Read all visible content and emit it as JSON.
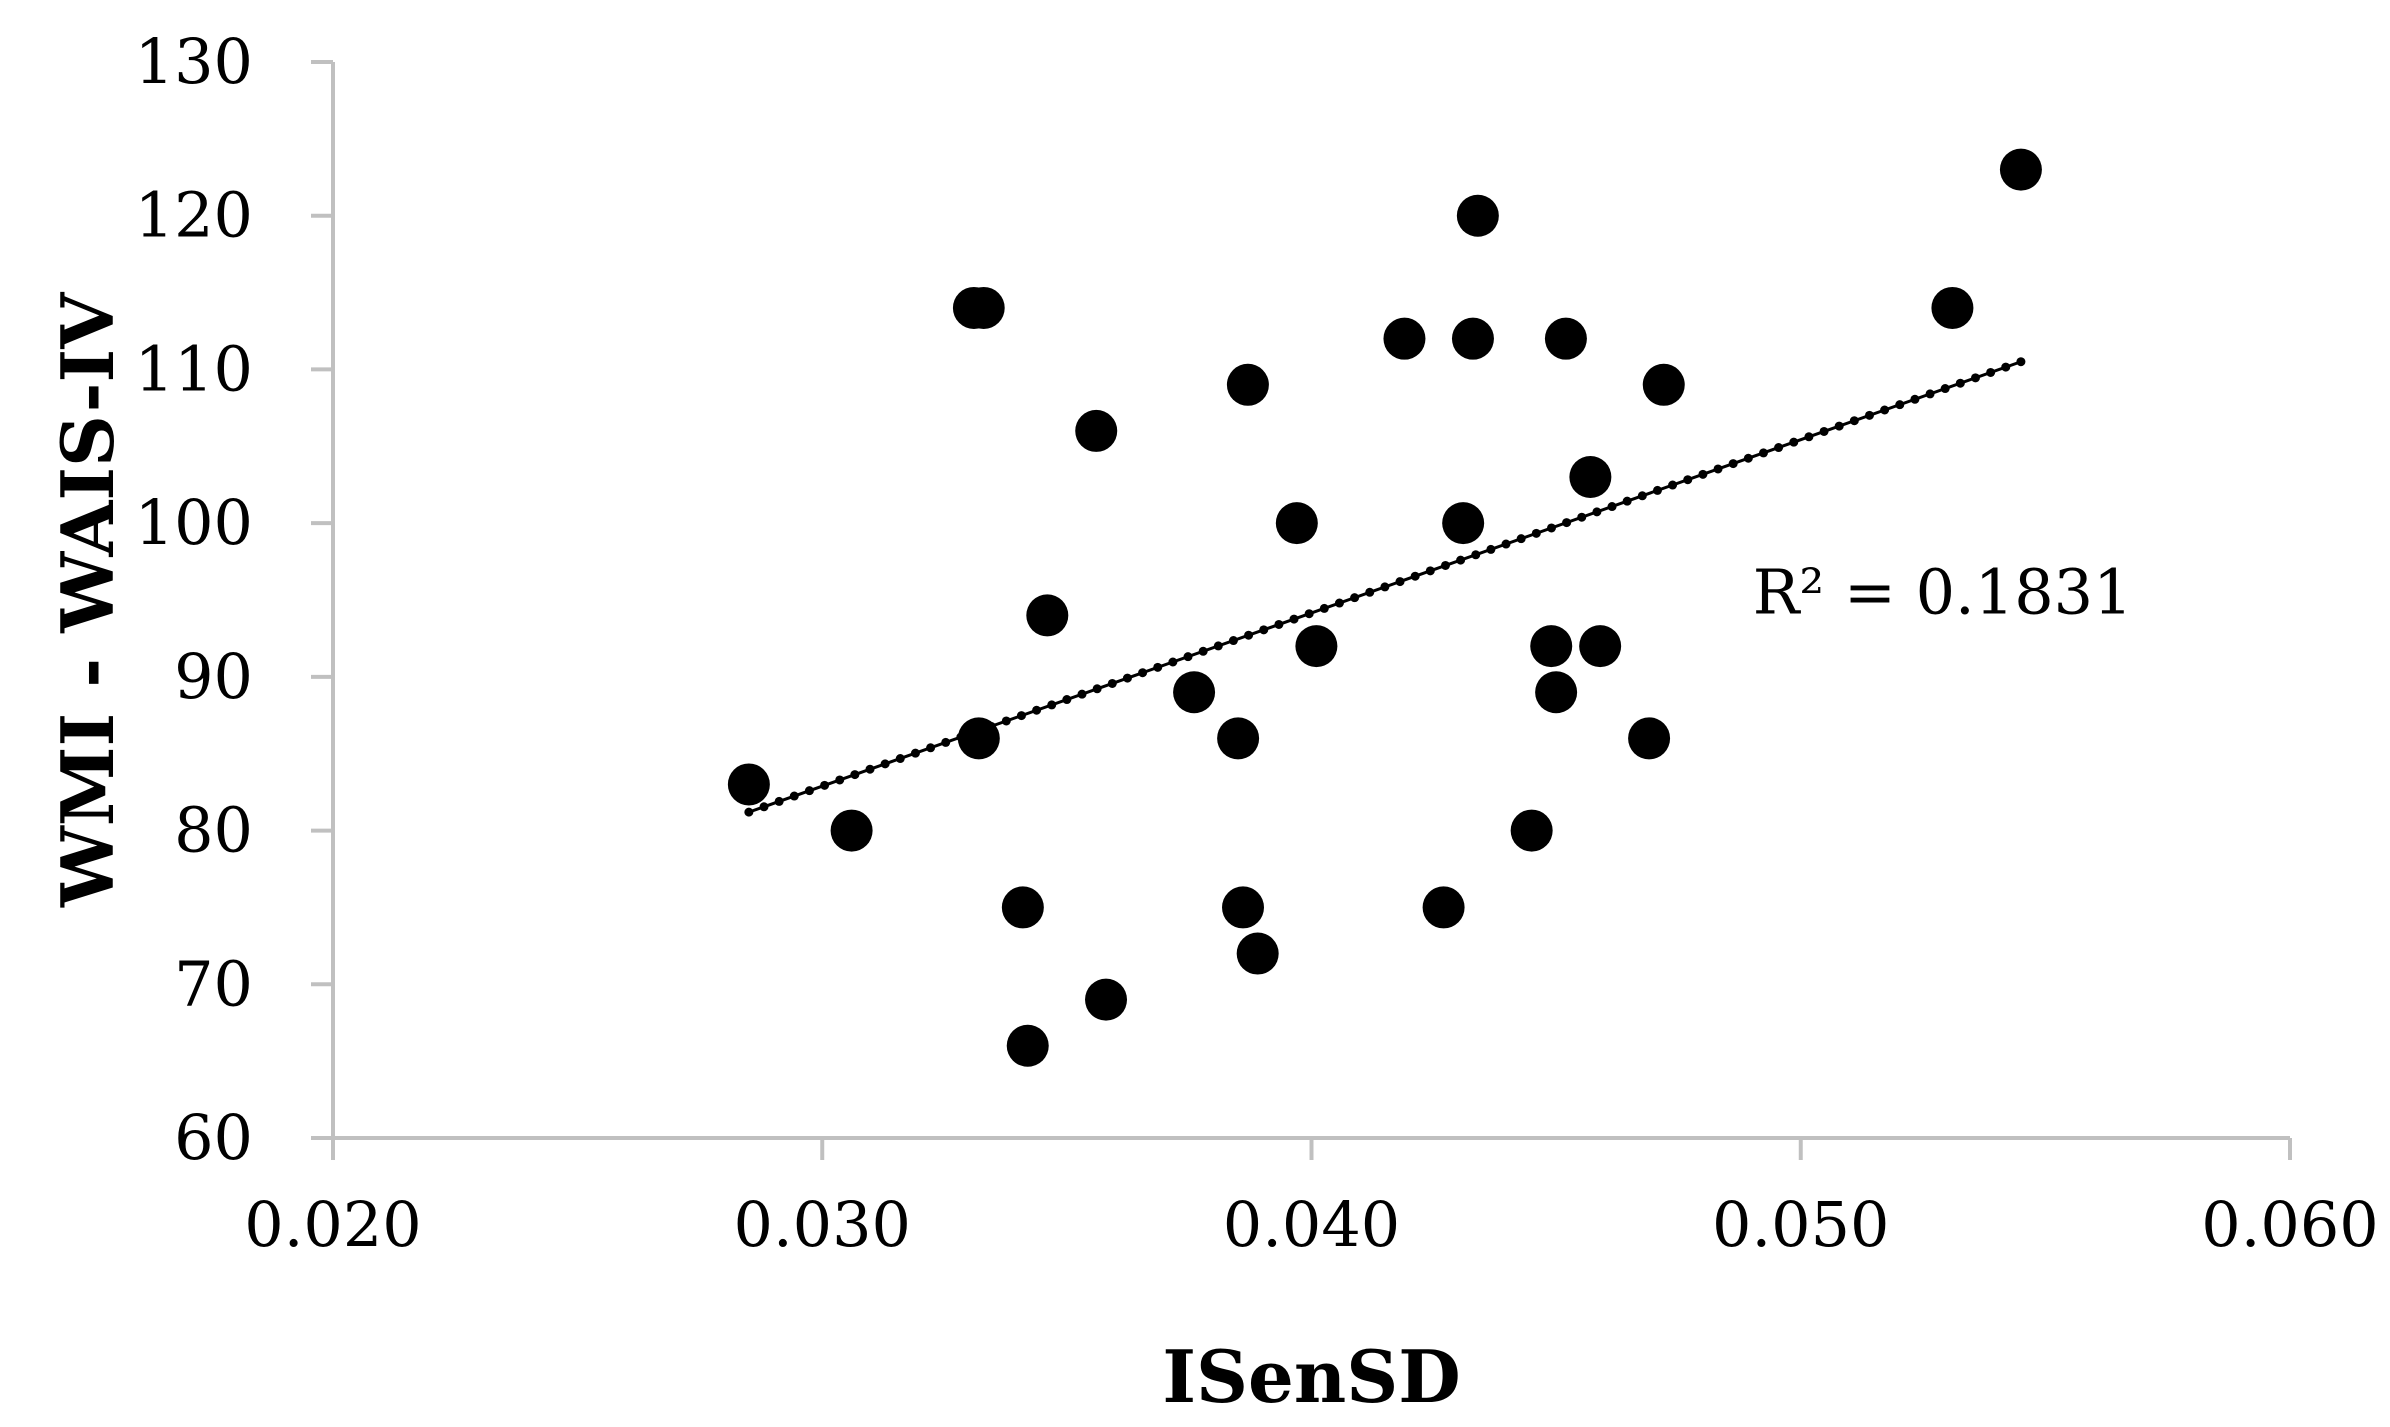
{
  "chart_data": {
    "type": "scatter",
    "xlabel": "ISenSD",
    "ylabel": "WMI - WAIS-IV",
    "xlim": [
      0.02,
      0.06
    ],
    "ylim": [
      60,
      130
    ],
    "x_ticks": [
      "0.020",
      "0.030",
      "0.040",
      "0.050",
      "0.060"
    ],
    "y_ticks": [
      "60",
      "70",
      "80",
      "90",
      "100",
      "110",
      "120",
      "130"
    ],
    "grid": false,
    "legend": "none",
    "series": [
      {
        "marker_color": "#000000",
        "points": [
          {
            "x": 0.0285,
            "y": 83
          },
          {
            "x": 0.0306,
            "y": 80
          },
          {
            "x": 0.0331,
            "y": 114
          },
          {
            "x": 0.0333,
            "y": 114
          },
          {
            "x": 0.0332,
            "y": 86
          },
          {
            "x": 0.0341,
            "y": 75
          },
          {
            "x": 0.0342,
            "y": 66
          },
          {
            "x": 0.0346,
            "y": 94
          },
          {
            "x": 0.0356,
            "y": 106
          },
          {
            "x": 0.0358,
            "y": 69
          },
          {
            "x": 0.0376,
            "y": 89
          },
          {
            "x": 0.0385,
            "y": 86
          },
          {
            "x": 0.0386,
            "y": 75
          },
          {
            "x": 0.0387,
            "y": 109
          },
          {
            "x": 0.0389,
            "y": 72
          },
          {
            "x": 0.0397,
            "y": 100
          },
          {
            "x": 0.0401,
            "y": 92
          },
          {
            "x": 0.0419,
            "y": 112
          },
          {
            "x": 0.0427,
            "y": 75
          },
          {
            "x": 0.0431,
            "y": 100
          },
          {
            "x": 0.0433,
            "y": 112
          },
          {
            "x": 0.0434,
            "y": 120
          },
          {
            "x": 0.0445,
            "y": 80
          },
          {
            "x": 0.0449,
            "y": 92
          },
          {
            "x": 0.045,
            "y": 89
          },
          {
            "x": 0.0452,
            "y": 112
          },
          {
            "x": 0.0457,
            "y": 103
          },
          {
            "x": 0.0459,
            "y": 92
          },
          {
            "x": 0.0469,
            "y": 86
          },
          {
            "x": 0.0472,
            "y": 109
          },
          {
            "x": 0.0531,
            "y": 114
          },
          {
            "x": 0.0545,
            "y": 123
          }
        ]
      }
    ],
    "trendline": {
      "type": "linear",
      "style": "dotted",
      "color": "#000000",
      "x_start": 0.0285,
      "x_end": 0.0545,
      "y_start": 81.2,
      "y_end": 110.5
    },
    "annotations": [
      {
        "text": "R² = 0.1831",
        "x": 0.0529,
        "y": 95.5
      }
    ]
  }
}
